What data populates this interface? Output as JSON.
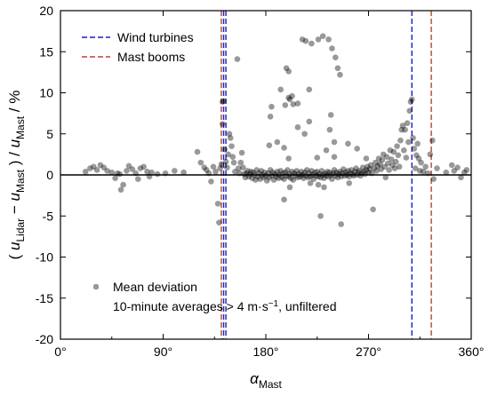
{
  "chart_data": {
    "type": "scatter",
    "xlabel": "α",
    "xlabel_sub": "Mast",
    "ylabel_parts": {
      "open": "( ",
      "u1": "u",
      "sub1": "Lidar",
      "minus": " − ",
      "u2": "u",
      "sub2": "Mast",
      "close": " ) / ",
      "u3": "u",
      "sub3": "Mast",
      "unit": " / %"
    },
    "xlim": [
      0,
      360
    ],
    "ylim": [
      -20,
      20
    ],
    "xticks": [
      {
        "value": 0,
        "label": "0°"
      },
      {
        "value": 90,
        "label": "90°"
      },
      {
        "value": 180,
        "label": "180°"
      },
      {
        "value": 270,
        "label": "270°"
      },
      {
        "value": 360,
        "label": "360°"
      }
    ],
    "yticks": [
      {
        "value": 20,
        "label": "20"
      },
      {
        "value": 15,
        "label": "15"
      },
      {
        "value": 10,
        "label": "10"
      },
      {
        "value": 5,
        "label": "5"
      },
      {
        "value": 0,
        "label": "0"
      },
      {
        "value": -5,
        "label": "-5"
      },
      {
        "value": -10,
        "label": "-10"
      },
      {
        "value": -15,
        "label": "-15"
      },
      {
        "value": -20,
        "label": "-20"
      }
    ],
    "legend_top": [
      {
        "label": "Wind turbines",
        "color": "#1f1fbf",
        "style": "dashed"
      },
      {
        "label": "Mast booms",
        "color": "#b5452a",
        "style": "dashed"
      }
    ],
    "legend_bottom": {
      "marker_label": "Mean deviation",
      "note": "10-minute averages > 4 m·s",
      "note_sup": "−1",
      "note_tail": ", unfiltered"
    },
    "vlines": {
      "wind_turbines": [
        143,
        145,
        308
      ],
      "mast_booms": [
        141,
        325
      ]
    },
    "zero_line": 0,
    "series": [
      {
        "marker": "circle",
        "color": "#000000",
        "opacity": 0.4,
        "points": [
          [
            22,
            0.4
          ],
          [
            26,
            0.8
          ],
          [
            29,
            1.0
          ],
          [
            32,
            0.6
          ],
          [
            35,
            1.2
          ],
          [
            38,
            0.9
          ],
          [
            41,
            0.5
          ],
          [
            45,
            0.3
          ],
          [
            48,
            -0.4
          ],
          [
            50,
            0.2
          ],
          [
            52,
            0.1
          ],
          [
            53,
            -1.8
          ],
          [
            55,
            -1.2
          ],
          [
            58,
            0.5
          ],
          [
            60,
            1.1
          ],
          [
            63,
            0.7
          ],
          [
            66,
            0.2
          ],
          [
            68,
            -0.5
          ],
          [
            70,
            0.8
          ],
          [
            73,
            1.0
          ],
          [
            76,
            0.4
          ],
          [
            78,
            -0.2
          ],
          [
            80,
            0.3
          ],
          [
            85,
            0.1
          ],
          [
            92,
            0.2
          ],
          [
            100,
            0.5
          ],
          [
            108,
            0.3
          ],
          [
            120,
            2.8
          ],
          [
            123,
            1.5
          ],
          [
            126,
            0.9
          ],
          [
            128,
            0.6
          ],
          [
            130,
            0.2
          ],
          [
            132,
            -0.8
          ],
          [
            134,
            1.0
          ],
          [
            136,
            0.4
          ],
          [
            138,
            -3.5
          ],
          [
            139,
            -5.8
          ],
          [
            140,
            0.8
          ],
          [
            141,
            1.3
          ],
          [
            142,
            8.9
          ],
          [
            142,
            6.2
          ],
          [
            143,
            9.0
          ],
          [
            144,
            3.1
          ],
          [
            145,
            1.6
          ],
          [
            146,
            0.9
          ],
          [
            147,
            2.5
          ],
          [
            148,
            5.0
          ],
          [
            149,
            4.5
          ],
          [
            150,
            3.5
          ],
          [
            151,
            2.2
          ],
          [
            152,
            1.5
          ],
          [
            153,
            0.4
          ],
          [
            155,
            14.1
          ],
          [
            156,
            0.8
          ],
          [
            157,
            0.2
          ],
          [
            158,
            1.5
          ],
          [
            159,
            2.7
          ],
          [
            160,
            0.9
          ],
          [
            161,
            0.1
          ],
          [
            162,
            -0.3
          ],
          [
            163,
            0.2
          ],
          [
            164,
            0.5
          ],
          [
            165,
            -0.2
          ],
          [
            166,
            0.1
          ],
          [
            167,
            0.4
          ],
          [
            168,
            -0.4
          ],
          [
            169,
            0.3
          ],
          [
            170,
            0.0
          ],
          [
            171,
            -0.6
          ],
          [
            172,
            0.6
          ],
          [
            173,
            -0.2
          ],
          [
            174,
            0.2
          ],
          [
            175,
            -0.5
          ],
          [
            176,
            0.5
          ],
          [
            177,
            0.0
          ],
          [
            178,
            -0.3
          ],
          [
            179,
            0.3
          ],
          [
            180,
            -0.1
          ],
          [
            181,
            -0.7
          ],
          [
            182,
            0.2
          ],
          [
            183,
            -0.3
          ],
          [
            184,
            0.6
          ],
          [
            185,
            -0.1
          ],
          [
            186,
            0.3
          ],
          [
            187,
            -0.6
          ],
          [
            188,
            0.1
          ],
          [
            189,
            -0.2
          ],
          [
            190,
            0.4
          ],
          [
            191,
            -0.4
          ],
          [
            192,
            0.0
          ],
          [
            193,
            0.5
          ],
          [
            194,
            -0.3
          ],
          [
            195,
            0.2
          ],
          [
            196,
            -0.5
          ],
          [
            197,
            0.3
          ],
          [
            198,
            -0.1
          ],
          [
            199,
            0.6
          ],
          [
            200,
            -0.2
          ],
          [
            201,
            0.1
          ],
          [
            202,
            -0.4
          ],
          [
            203,
            0.4
          ],
          [
            204,
            -0.6
          ],
          [
            205,
            0.2
          ],
          [
            206,
            -0.1
          ],
          [
            207,
            0.5
          ],
          [
            208,
            -0.3
          ],
          [
            209,
            0.1
          ],
          [
            210,
            -0.2
          ],
          [
            211,
            0.4
          ],
          [
            212,
            0.0
          ],
          [
            213,
            -0.4
          ],
          [
            214,
            0.3
          ],
          [
            215,
            -0.1
          ],
          [
            216,
            0.6
          ],
          [
            217,
            -0.3
          ],
          [
            218,
            0.2
          ],
          [
            219,
            -0.2
          ],
          [
            220,
            0.5
          ],
          [
            221,
            0.0
          ],
          [
            222,
            -0.5
          ],
          [
            223,
            0.3
          ],
          [
            224,
            -0.1
          ],
          [
            225,
            0.4
          ],
          [
            226,
            -0.2
          ],
          [
            227,
            0.1
          ],
          [
            228,
            -0.3
          ],
          [
            229,
            0.5
          ],
          [
            230,
            0.0
          ],
          [
            231,
            -0.4
          ],
          [
            232,
            0.2
          ],
          [
            233,
            -0.1
          ],
          [
            234,
            0.4
          ],
          [
            235,
            -0.2
          ],
          [
            236,
            0.3
          ],
          [
            237,
            0.0
          ],
          [
            238,
            -0.5
          ],
          [
            239,
            0.2
          ],
          [
            240,
            0.6
          ],
          [
            241,
            -0.1
          ],
          [
            242,
            0.3
          ],
          [
            243,
            -0.3
          ],
          [
            244,
            0.1
          ],
          [
            245,
            0.4
          ],
          [
            246,
            -0.2
          ],
          [
            247,
            0.2
          ],
          [
            248,
            0.7
          ],
          [
            249,
            -0.1
          ],
          [
            250,
            0.3
          ],
          [
            251,
            0.0
          ],
          [
            252,
            0.5
          ],
          [
            253,
            -0.2
          ],
          [
            254,
            0.2
          ],
          [
            255,
            0.6
          ],
          [
            256,
            0.1
          ],
          [
            257,
            -0.1
          ],
          [
            258,
            0.4
          ],
          [
            259,
            0.8
          ],
          [
            260,
            0.0
          ],
          [
            261,
            0.3
          ],
          [
            262,
            0.5
          ],
          [
            263,
            -0.1
          ],
          [
            264,
            0.2
          ],
          [
            265,
            0.9
          ],
          [
            266,
            0.4
          ],
          [
            267,
            0.1
          ],
          [
            268,
            0.6
          ],
          [
            269,
            1.0
          ],
          [
            270,
            0.3
          ],
          [
            271,
            0.7
          ],
          [
            272,
            1.2
          ],
          [
            273,
            0.2
          ],
          [
            274,
            -4.2
          ],
          [
            275,
            0.8
          ],
          [
            276,
            1.5
          ],
          [
            277,
            0.5
          ],
          [
            278,
            1.1
          ],
          [
            279,
            2.0
          ],
          [
            280,
            1.3
          ],
          [
            281,
            0.7
          ],
          [
            282,
            1.8
          ],
          [
            283,
            2.5
          ],
          [
            284,
            1.0
          ],
          [
            285,
            -0.3
          ],
          [
            286,
            2.2
          ],
          [
            287,
            1.4
          ],
          [
            288,
            0.6
          ],
          [
            289,
            3.0
          ],
          [
            290,
            1.9
          ],
          [
            291,
            1.2
          ],
          [
            292,
            2.8
          ],
          [
            293,
            0.8
          ],
          [
            294,
            1.6
          ],
          [
            295,
            3.5
          ],
          [
            296,
            2.4
          ],
          [
            297,
            1.0
          ],
          [
            298,
            4.2
          ],
          [
            299,
            5.5
          ],
          [
            300,
            6.0
          ],
          [
            301,
            3.0
          ],
          [
            302,
            5.5
          ],
          [
            303,
            2.1
          ],
          [
            304,
            6.3
          ],
          [
            305,
            4.0
          ],
          [
            306,
            7.8
          ],
          [
            307,
            8.9
          ],
          [
            308,
            9.2
          ],
          [
            309,
            4.5
          ],
          [
            310,
            3.2
          ],
          [
            311,
            0.8
          ],
          [
            312,
            2.4
          ],
          [
            313,
            3.8
          ],
          [
            314,
            2.0
          ],
          [
            315,
            0.5
          ],
          [
            316,
            1.5
          ],
          [
            318,
            0.4
          ],
          [
            320,
            1.0
          ],
          [
            322,
            0.2
          ],
          [
            324,
            2.5
          ],
          [
            326,
            4.2
          ],
          [
            327,
            -0.5
          ],
          [
            330,
            0.8
          ],
          [
            338,
            0.3
          ],
          [
            343,
            1.2
          ],
          [
            345,
            0.5
          ],
          [
            348,
            0.9
          ],
          [
            351,
            -0.3
          ],
          [
            354,
            0.3
          ],
          [
            356,
            0.6
          ],
          [
            196,
            -3.0
          ],
          [
            201,
            -1.5
          ],
          [
            219,
            -1.0
          ],
          [
            226,
            -1.2
          ],
          [
            228,
            -5.0
          ],
          [
            231,
            -1.5
          ],
          [
            246,
            -6.0
          ],
          [
            253,
            -1.0
          ],
          [
            208,
            5.8
          ],
          [
            214,
            5.0
          ],
          [
            218,
            6.5
          ],
          [
            233,
            3.0
          ],
          [
            240,
            2.2
          ],
          [
            252,
            3.8
          ],
          [
            197,
            8.5
          ],
          [
            200,
            9.4
          ],
          [
            201,
            9.2
          ],
          [
            203,
            9.6
          ],
          [
            204,
            8.6
          ],
          [
            208,
            8.7
          ],
          [
            212,
            16.5
          ],
          [
            215,
            16.3
          ],
          [
            220,
            16.0
          ],
          [
            226,
            16.5
          ],
          [
            230,
            16.9
          ],
          [
            235,
            16.5
          ],
          [
            238,
            15.4
          ],
          [
            241,
            14.3
          ],
          [
            243,
            13.0
          ],
          [
            245,
            12.2
          ],
          [
            198,
            13.0
          ],
          [
            200,
            12.6
          ],
          [
            193,
            10.4
          ],
          [
            218,
            10.4
          ],
          [
            184,
            7.1
          ],
          [
            185,
            8.3
          ],
          [
            183,
            3.6
          ],
          [
            190,
            4.0
          ],
          [
            196,
            3.3
          ],
          [
            200,
            2.0
          ],
          [
            225,
            2.1
          ],
          [
            260,
            3.2
          ],
          [
            268,
            2.0
          ],
          [
            237,
            7.3
          ],
          [
            236,
            5.5
          ],
          [
            240,
            4.0
          ]
        ]
      }
    ]
  }
}
